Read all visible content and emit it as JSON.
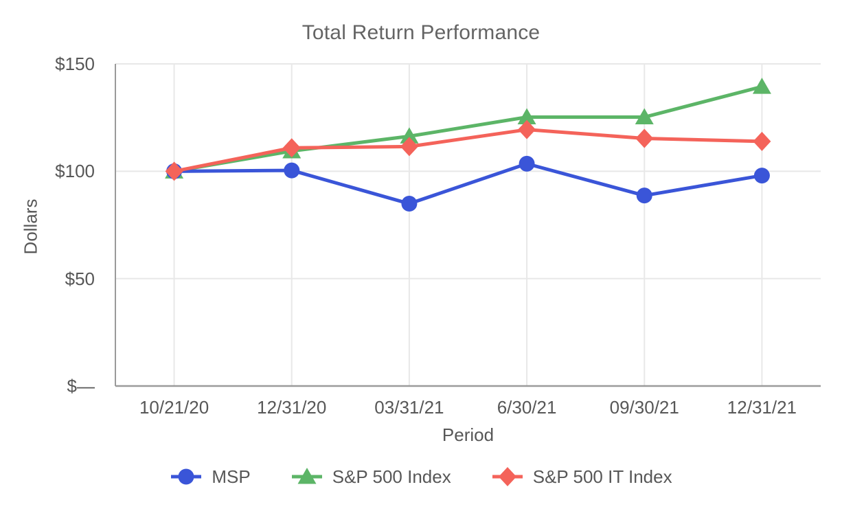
{
  "chart_data": {
    "type": "line",
    "title": "Total Return Performance",
    "xlabel": "Period",
    "ylabel": "Dollars",
    "categories": [
      "10/21/20",
      "12/31/20",
      "03/31/21",
      "6/30/21",
      "09/30/21",
      "12/31/21"
    ],
    "y_ticks": [
      {
        "label": "$150",
        "value": 150
      },
      {
        "label": "$100",
        "value": 100
      },
      {
        "label": "$50",
        "value": 50
      },
      {
        "label": "$—",
        "value": 0
      }
    ],
    "ylim": [
      0,
      150
    ],
    "grid": true,
    "legend_position": "bottom",
    "series": [
      {
        "name": "MSP",
        "marker": "circle",
        "color": "#3a55d8",
        "values": [
          100,
          100.4,
          84.9,
          103.5,
          88.7,
          98.0
        ]
      },
      {
        "name": "S&P 500 Index",
        "marker": "triangle",
        "color": "#5cb567",
        "values": [
          100,
          109.4,
          116.3,
          125.2,
          125.2,
          139.4
        ]
      },
      {
        "name": "S&P 500 IT Index",
        "marker": "diamond",
        "color": "#f4635a",
        "values": [
          100,
          110.9,
          111.5,
          119.4,
          115.3,
          113.9
        ]
      }
    ],
    "colors": {
      "grid_line": "#e8e8e8",
      "axis_line": "#9a9a9a",
      "text": "#575757",
      "title_text": "#646464"
    }
  }
}
